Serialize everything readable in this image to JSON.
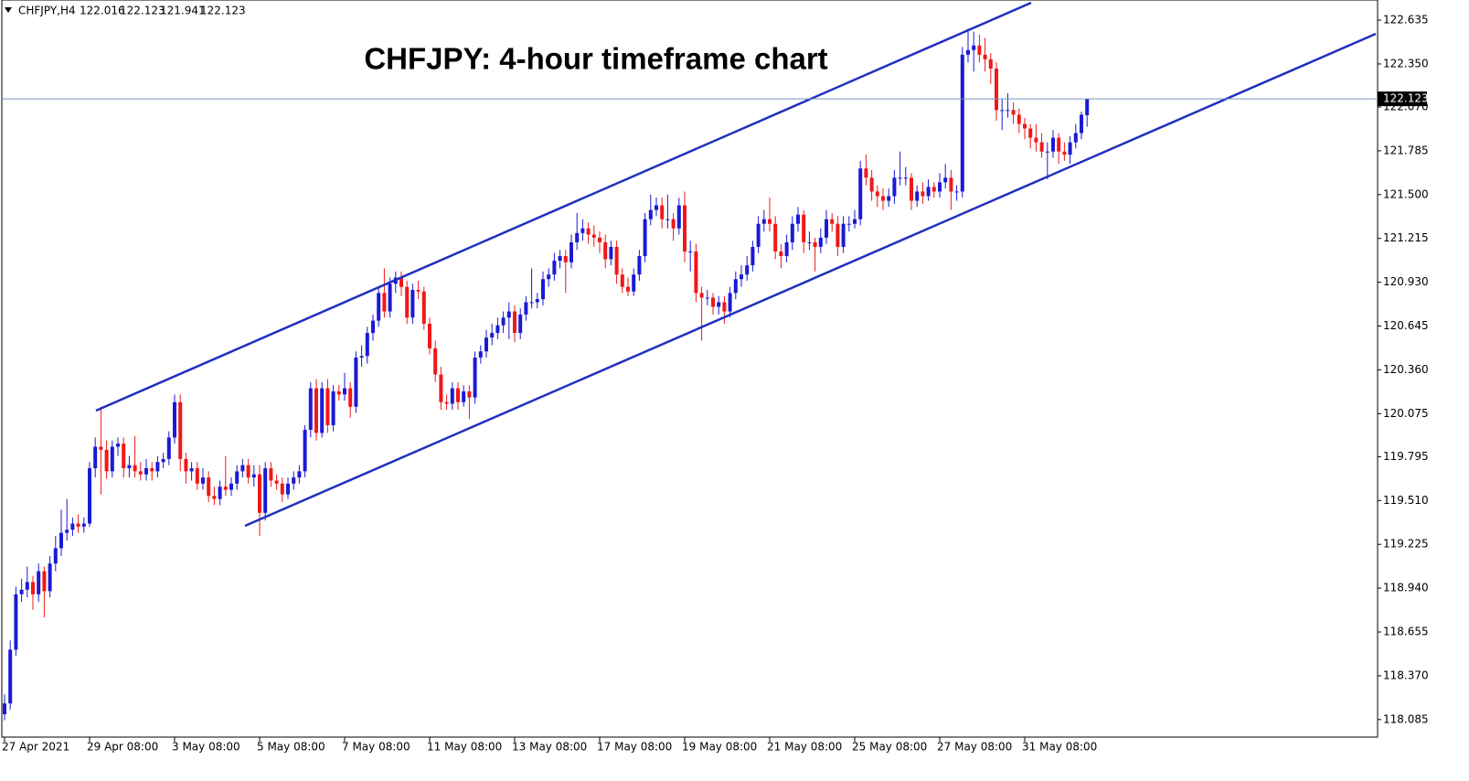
{
  "chart_data": {
    "type": "candlestick",
    "symbol": "CHFJPY,H4",
    "title": "CHFJPY: 4-hour timeframe chart",
    "up_color": "#1a1ad6",
    "down_color": "#f01818",
    "ylim": [
      117.971,
      122.766
    ],
    "yticks": [
      122.635,
      {
        "value": 122.35,
        "label": "122.350"
      },
      {
        "value": 122.07,
        "label": "122.070"
      },
      121.785,
      {
        "value": 121.5,
        "label": "121.500"
      },
      121.215,
      {
        "value": 120.93,
        "label": "120.930"
      },
      120.645,
      {
        "value": 120.36,
        "label": "120.360"
      },
      120.075,
      119.795,
      {
        "value": 119.51,
        "label": "119.510"
      },
      119.225,
      {
        "value": 118.94,
        "label": "118.940"
      },
      118.655,
      {
        "value": 118.37,
        "label": "118.370"
      },
      118.085
    ],
    "grid": false,
    "categories": [
      "27 Apr 2021",
      null,
      null,
      null,
      null,
      null,
      null,
      null,
      null,
      null,
      null,
      null,
      null,
      null,
      null,
      "29 Apr 08:00",
      null,
      null,
      null,
      null,
      null,
      null,
      null,
      null,
      null,
      null,
      null,
      null,
      null,
      null,
      "3 May 08:00",
      null,
      null,
      null,
      null,
      null,
      null,
      null,
      null,
      null,
      null,
      null,
      null,
      null,
      null,
      "5 May 08:00",
      null,
      null,
      null,
      null,
      null,
      null,
      null,
      null,
      null,
      null,
      null,
      null,
      null,
      null,
      "7 May 08:00",
      null,
      null,
      null,
      null,
      null,
      null,
      null,
      null,
      null,
      null,
      null,
      null,
      null,
      null,
      "11 May 08:00",
      null,
      null,
      null,
      null,
      null,
      null,
      null,
      null,
      null,
      null,
      null,
      null,
      null,
      null,
      "13 May 08:00",
      null,
      null,
      null,
      null,
      null,
      null,
      null,
      null,
      null,
      null,
      null,
      null,
      null,
      null,
      "17 May 08:00",
      null,
      null,
      null,
      null,
      null,
      null,
      null,
      null,
      null,
      null,
      null,
      null,
      null,
      null,
      "19 May 08:00",
      null,
      null,
      null,
      null,
      null,
      null,
      null,
      null,
      null,
      null,
      null,
      null,
      null,
      null,
      "21 May 08:00",
      null,
      null,
      null,
      null,
      null,
      null,
      null,
      null,
      null,
      null,
      null,
      null,
      null,
      null,
      "25 May 08:00",
      null,
      null,
      null,
      null,
      null,
      null,
      null,
      null,
      null,
      null,
      null,
      null,
      null,
      null,
      "27 May 08:00",
      null,
      null,
      null,
      null,
      null,
      null,
      null,
      null,
      null,
      null,
      null,
      null,
      null,
      null,
      "31 May 08:00",
      null,
      null,
      null,
      null,
      null,
      null,
      null,
      null,
      null,
      null,
      null
    ],
    "ohlc": [
      [
        118.12,
        118.25,
        118.08,
        118.19
      ],
      [
        118.19,
        118.6,
        118.15,
        118.54
      ],
      [
        118.54,
        118.95,
        118.5,
        118.9
      ],
      [
        118.9,
        119.0,
        118.85,
        118.93
      ],
      [
        118.93,
        119.08,
        118.88,
        118.98
      ],
      [
        118.98,
        119.02,
        118.8,
        118.9
      ],
      [
        118.9,
        119.1,
        118.85,
        119.05
      ],
      [
        119.05,
        119.08,
        118.75,
        118.92
      ],
      [
        118.92,
        119.15,
        118.88,
        119.1
      ],
      [
        119.1,
        119.28,
        119.05,
        119.2
      ],
      [
        119.2,
        119.45,
        119.15,
        119.3
      ],
      [
        119.3,
        119.52,
        119.25,
        119.32
      ],
      [
        119.32,
        119.4,
        119.28,
        119.36
      ],
      [
        119.36,
        119.42,
        119.3,
        119.34
      ],
      [
        119.34,
        119.4,
        119.3,
        119.36
      ],
      [
        119.36,
        119.76,
        119.34,
        119.72
      ],
      [
        119.72,
        119.92,
        119.66,
        119.86
      ],
      [
        119.86,
        120.12,
        119.55,
        119.84
      ],
      [
        119.84,
        119.9,
        119.65,
        119.7
      ],
      [
        119.7,
        119.9,
        119.66,
        119.86
      ],
      [
        119.86,
        119.92,
        119.8,
        119.88
      ],
      [
        119.88,
        119.92,
        119.66,
        119.72
      ],
      [
        119.72,
        119.8,
        119.66,
        119.74
      ],
      [
        119.74,
        119.93,
        119.66,
        119.7
      ],
      [
        119.7,
        119.76,
        119.64,
        119.68
      ],
      [
        119.68,
        119.78,
        119.64,
        119.72
      ],
      [
        119.72,
        119.76,
        119.64,
        119.7
      ],
      [
        119.7,
        119.8,
        119.66,
        119.76
      ],
      [
        119.76,
        119.82,
        119.72,
        119.78
      ],
      [
        119.78,
        119.96,
        119.74,
        119.92
      ],
      [
        119.92,
        120.2,
        119.88,
        120.15
      ],
      [
        120.15,
        120.2,
        119.7,
        119.78
      ],
      [
        119.78,
        119.82,
        119.62,
        119.7
      ],
      [
        119.7,
        119.76,
        119.64,
        119.72
      ],
      [
        119.72,
        119.76,
        119.58,
        119.62
      ],
      [
        119.62,
        119.72,
        119.58,
        119.66
      ],
      [
        119.66,
        119.7,
        119.5,
        119.54
      ],
      [
        119.54,
        119.6,
        119.48,
        119.52
      ],
      [
        119.52,
        119.64,
        119.48,
        119.6
      ],
      [
        119.6,
        119.8,
        119.54,
        119.58
      ],
      [
        119.58,
        119.66,
        119.54,
        119.62
      ],
      [
        119.62,
        119.74,
        119.58,
        119.7
      ],
      [
        119.7,
        119.78,
        119.66,
        119.74
      ],
      [
        119.74,
        119.78,
        119.62,
        119.66
      ],
      [
        119.66,
        119.74,
        119.6,
        119.68
      ],
      [
        119.68,
        119.74,
        119.28,
        119.43
      ],
      [
        119.43,
        119.76,
        119.38,
        119.72
      ],
      [
        119.72,
        119.76,
        119.6,
        119.64
      ],
      [
        119.64,
        119.68,
        119.58,
        119.62
      ],
      [
        119.62,
        119.66,
        119.5,
        119.55
      ],
      [
        119.55,
        119.66,
        119.52,
        119.62
      ],
      [
        119.62,
        119.7,
        119.58,
        119.66
      ],
      [
        119.66,
        119.74,
        119.62,
        119.7
      ],
      [
        119.7,
        120.0,
        119.66,
        119.97
      ],
      [
        119.97,
        120.28,
        119.92,
        120.24
      ],
      [
        120.24,
        120.3,
        119.9,
        119.95
      ],
      [
        119.95,
        120.28,
        119.92,
        120.24
      ],
      [
        120.24,
        120.3,
        119.95,
        120.0
      ],
      [
        120.0,
        120.26,
        119.96,
        120.22
      ],
      [
        120.22,
        120.26,
        120.16,
        120.2
      ],
      [
        120.2,
        120.34,
        120.16,
        120.24
      ],
      [
        120.24,
        120.28,
        120.05,
        120.12
      ],
      [
        120.12,
        120.48,
        120.08,
        120.44
      ],
      [
        120.44,
        120.52,
        120.38,
        120.45
      ],
      [
        120.45,
        120.64,
        120.4,
        120.6
      ],
      [
        120.6,
        120.72,
        120.55,
        120.68
      ],
      [
        120.68,
        120.9,
        120.64,
        120.86
      ],
      [
        120.86,
        121.02,
        120.7,
        120.74
      ],
      [
        120.74,
        120.96,
        120.7,
        120.92
      ],
      [
        120.92,
        121.0,
        120.86,
        120.96
      ],
      [
        120.96,
        121.0,
        120.84,
        120.9
      ],
      [
        120.9,
        120.94,
        120.66,
        120.7
      ],
      [
        120.7,
        120.92,
        120.66,
        120.88
      ],
      [
        120.88,
        120.94,
        120.82,
        120.87
      ],
      [
        120.87,
        120.9,
        120.62,
        120.66
      ],
      [
        120.66,
        120.7,
        120.46,
        120.5
      ],
      [
        120.5,
        120.55,
        120.28,
        120.33
      ],
      [
        120.33,
        120.38,
        120.1,
        120.15
      ],
      [
        120.15,
        120.2,
        120.1,
        120.14
      ],
      [
        120.14,
        120.28,
        120.1,
        120.24
      ],
      [
        120.24,
        120.28,
        120.1,
        120.15
      ],
      [
        120.15,
        120.26,
        120.12,
        120.22
      ],
      [
        120.22,
        120.26,
        120.04,
        120.18
      ],
      [
        120.18,
        120.48,
        120.14,
        120.44
      ],
      [
        120.44,
        120.52,
        120.4,
        120.48
      ],
      [
        120.48,
        120.62,
        120.44,
        120.57
      ],
      [
        120.57,
        120.66,
        120.52,
        120.6
      ],
      [
        120.6,
        120.7,
        120.56,
        120.65
      ],
      [
        120.65,
        120.74,
        120.6,
        120.7
      ],
      [
        120.7,
        120.8,
        120.56,
        120.74
      ],
      [
        120.74,
        120.78,
        120.54,
        120.6
      ],
      [
        120.6,
        120.76,
        120.56,
        120.72
      ],
      [
        120.72,
        120.84,
        120.68,
        120.8
      ],
      [
        120.8,
        121.02,
        120.76,
        120.8
      ],
      [
        120.8,
        120.86,
        120.76,
        120.82
      ],
      [
        120.82,
        121.0,
        120.78,
        120.95
      ],
      [
        120.95,
        121.02,
        120.9,
        120.98
      ],
      [
        120.98,
        121.12,
        120.94,
        121.07
      ],
      [
        121.07,
        121.14,
        121.02,
        121.1
      ],
      [
        121.1,
        121.14,
        120.86,
        121.06
      ],
      [
        121.06,
        121.24,
        121.02,
        121.19
      ],
      [
        121.19,
        121.38,
        121.14,
        121.25
      ],
      [
        121.25,
        121.34,
        121.2,
        121.28
      ],
      [
        121.28,
        121.32,
        121.18,
        121.24
      ],
      [
        121.24,
        121.3,
        121.16,
        121.22
      ],
      [
        121.22,
        121.26,
        121.12,
        121.19
      ],
      [
        121.19,
        121.24,
        121.02,
        121.08
      ],
      [
        121.08,
        121.2,
        121.04,
        121.16
      ],
      [
        121.16,
        121.2,
        120.92,
        120.98
      ],
      [
        120.98,
        121.02,
        120.86,
        120.9
      ],
      [
        120.9,
        120.96,
        120.84,
        120.87
      ],
      [
        120.87,
        121.02,
        120.84,
        120.98
      ],
      [
        120.98,
        121.14,
        120.94,
        121.1
      ],
      [
        121.1,
        121.38,
        121.06,
        121.34
      ],
      [
        121.34,
        121.5,
        121.3,
        121.4
      ],
      [
        121.4,
        121.48,
        121.36,
        121.43
      ],
      [
        121.43,
        121.48,
        121.28,
        121.34
      ],
      [
        121.34,
        121.5,
        121.28,
        121.34
      ],
      [
        121.34,
        121.38,
        121.2,
        121.28
      ],
      [
        121.28,
        121.48,
        121.24,
        121.43
      ],
      [
        121.43,
        121.52,
        121.06,
        121.13
      ],
      [
        121.13,
        121.2,
        121.0,
        121.13
      ],
      [
        121.13,
        121.18,
        120.8,
        120.86
      ],
      [
        120.86,
        120.9,
        120.55,
        120.83
      ],
      [
        120.83,
        120.88,
        120.78,
        120.83
      ],
      [
        120.83,
        120.86,
        120.72,
        120.77
      ],
      [
        120.77,
        120.84,
        120.72,
        120.8
      ],
      [
        120.8,
        120.84,
        120.66,
        120.74
      ],
      [
        120.74,
        120.9,
        120.7,
        120.86
      ],
      [
        120.86,
        121.0,
        120.82,
        120.95
      ],
      [
        120.95,
        121.04,
        120.9,
        120.98
      ],
      [
        120.98,
        121.1,
        120.94,
        121.04
      ],
      [
        121.04,
        121.2,
        121.0,
        121.16
      ],
      [
        121.16,
        121.36,
        121.12,
        121.31
      ],
      [
        121.31,
        121.4,
        121.26,
        121.34
      ],
      [
        121.34,
        121.48,
        121.26,
        121.31
      ],
      [
        121.31,
        121.36,
        121.08,
        121.13
      ],
      [
        121.13,
        121.18,
        121.02,
        121.1
      ],
      [
        121.1,
        121.24,
        121.06,
        121.19
      ],
      [
        121.19,
        121.36,
        121.14,
        121.31
      ],
      [
        121.31,
        121.42,
        121.26,
        121.37
      ],
      [
        121.37,
        121.4,
        121.12,
        121.19
      ],
      [
        121.19,
        121.26,
        121.14,
        121.19
      ],
      [
        121.19,
        121.22,
        121.0,
        121.16
      ],
      [
        121.16,
        121.28,
        121.12,
        121.22
      ],
      [
        121.22,
        121.4,
        121.18,
        121.34
      ],
      [
        121.34,
        121.38,
        121.26,
        121.31
      ],
      [
        121.31,
        121.36,
        121.1,
        121.16
      ],
      [
        121.16,
        121.36,
        121.12,
        121.31
      ],
      [
        121.31,
        121.36,
        121.26,
        121.31
      ],
      [
        121.31,
        121.4,
        121.28,
        121.34
      ],
      [
        121.34,
        121.72,
        121.3,
        121.67
      ],
      [
        121.67,
        121.76,
        121.56,
        121.61
      ],
      [
        121.61,
        121.66,
        121.46,
        121.52
      ],
      [
        121.52,
        121.56,
        121.42,
        121.49
      ],
      [
        121.49,
        121.54,
        121.4,
        121.46
      ],
      [
        121.46,
        121.54,
        121.42,
        121.49
      ],
      [
        121.49,
        121.66,
        121.44,
        121.61
      ],
      [
        121.61,
        121.78,
        121.56,
        121.61
      ],
      [
        121.61,
        121.68,
        121.56,
        121.61
      ],
      [
        121.61,
        121.64,
        121.4,
        121.46
      ],
      [
        121.46,
        121.56,
        121.42,
        121.52
      ],
      [
        121.52,
        121.58,
        121.44,
        121.49
      ],
      [
        121.49,
        121.6,
        121.46,
        121.55
      ],
      [
        121.55,
        121.58,
        121.48,
        121.52
      ],
      [
        121.52,
        121.64,
        121.48,
        121.58
      ],
      [
        121.58,
        121.7,
        121.54,
        121.61
      ],
      [
        121.61,
        121.66,
        121.4,
        121.52
      ],
      [
        121.52,
        121.56,
        121.46,
        121.52
      ],
      [
        121.52,
        122.46,
        121.48,
        122.41
      ],
      [
        122.41,
        122.58,
        122.36,
        122.44
      ],
      [
        122.44,
        122.56,
        122.3,
        122.47
      ],
      [
        122.47,
        122.54,
        122.36,
        122.41
      ],
      [
        122.41,
        122.52,
        122.3,
        122.38
      ],
      [
        122.38,
        122.42,
        122.22,
        122.32
      ],
      [
        122.32,
        122.36,
        121.98,
        122.05
      ],
      [
        122.05,
        122.12,
        121.92,
        122.05
      ],
      [
        122.05,
        122.16,
        122.0,
        122.05
      ],
      [
        122.05,
        122.1,
        121.96,
        122.02
      ],
      [
        122.02,
        122.06,
        121.9,
        121.96
      ],
      [
        121.96,
        122.0,
        121.86,
        121.93
      ],
      [
        121.93,
        121.96,
        121.8,
        121.87
      ],
      [
        121.87,
        121.96,
        121.78,
        121.84
      ],
      [
        121.84,
        121.9,
        121.74,
        121.78
      ],
      [
        121.78,
        121.84,
        121.6,
        121.78
      ],
      [
        121.78,
        121.92,
        121.74,
        121.87
      ],
      [
        121.87,
        121.9,
        121.7,
        121.78
      ],
      [
        121.78,
        121.84,
        121.72,
        121.76
      ],
      [
        121.76,
        121.88,
        121.7,
        121.84
      ],
      [
        121.84,
        121.96,
        121.8,
        121.9
      ],
      [
        121.9,
        122.04,
        121.86,
        122.02
      ],
      [
        122.016,
        122.123,
        121.941,
        122.123
      ]
    ]
  }
}
